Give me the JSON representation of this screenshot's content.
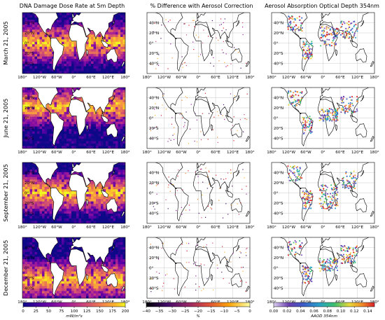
{
  "chart_data": {
    "type": "heatmap",
    "columns": [
      "DNA Damage Dose Rate at 5m Depth",
      "% Difference with Aerosol Correction",
      "Aerosol Absorption Optical Depth 354nm"
    ],
    "rows": [
      "March 21, 2005",
      "June 21, 2005",
      "September 21, 2005",
      "December 21, 2005"
    ],
    "x_ticks": [
      "180°",
      "120°W",
      "60°W",
      "0°",
      "60°E",
      "120°E",
      "180°"
    ],
    "y_ticks": [
      "40°N",
      "20°N",
      "0°",
      "20°S",
      "40°S"
    ],
    "x_range": [
      -180,
      180
    ],
    "y_range": [
      -60,
      60
    ],
    "grid": true,
    "colorbars": [
      {
        "colormap": "plasma",
        "ticks": [
          "0",
          "25",
          "50",
          "75",
          "100",
          "125",
          "150",
          "175",
          "200"
        ],
        "range": [
          0,
          200
        ],
        "unit_label": "mW/m²s"
      },
      {
        "colormap": "inferno",
        "ticks": [
          "−40",
          "−35",
          "−30",
          "−25",
          "−20",
          "−15",
          "−10",
          "−5",
          "0"
        ],
        "range": [
          -40,
          0
        ],
        "unit_label": "%"
      },
      {
        "colormap": "rainbow",
        "ticks": [
          "0.00",
          "0.02",
          "0.04",
          "0.06",
          "0.08",
          "0.10",
          "0.12",
          "0.14"
        ],
        "range": [
          0,
          0.15
        ],
        "unit_label": "AAOD 354nm"
      }
    ]
  },
  "colors": {
    "land": "#ffffff",
    "coast": "#000000",
    "grid": "#c8c8c8",
    "ocean_low": "#2a0a78",
    "ocean_high": "#f6d845"
  }
}
